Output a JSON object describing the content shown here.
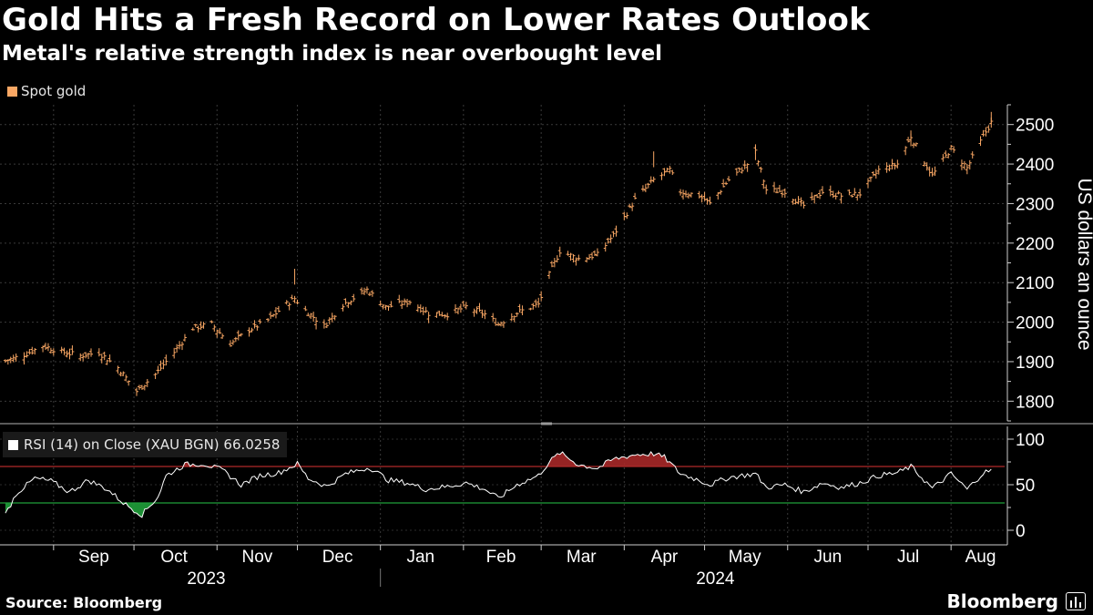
{
  "title": "Gold Hits a Fresh Record on Lower Rates Outlook",
  "subtitle": "Metal's relative strength index is near overbought level",
  "source": "Source: Bloomberg",
  "brand": "Bloomberg",
  "chart_data": [
    {
      "type": "ohlc",
      "legend": [
        "Spot gold"
      ],
      "ylabel": "US dollars an ounce",
      "ylim": [
        1750,
        2550
      ],
      "yticks": [
        1800,
        1900,
        2000,
        2100,
        2200,
        2300,
        2400,
        2500
      ],
      "color": "#f9a764",
      "grid": true,
      "series": [
        {
          "name": "Spot gold",
          "anchors": [
            [
              "2023-08-14",
              1902
            ],
            [
              "2023-08-21",
              1917
            ],
            [
              "2023-08-28",
              1940
            ],
            [
              "2023-09-04",
              1925
            ],
            [
              "2023-09-11",
              1915
            ],
            [
              "2023-09-18",
              1923
            ],
            [
              "2023-09-25",
              1885
            ],
            [
              "2023-10-02",
              1825
            ],
            [
              "2023-10-09",
              1868
            ],
            [
              "2023-10-16",
              1924
            ],
            [
              "2023-10-23",
              1985
            ],
            [
              "2023-10-30",
              1995
            ],
            [
              "2023-11-06",
              1945
            ],
            [
              "2023-11-13",
              1980
            ],
            [
              "2023-11-20",
              2005
            ],
            [
              "2023-11-27",
              2046
            ],
            [
              "2023-11-30",
              2060
            ],
            [
              "2023-12-04",
              2030
            ],
            [
              "2023-12-11",
              1990
            ],
            [
              "2023-12-18",
              2045
            ],
            [
              "2023-12-27",
              2082
            ],
            [
              "2024-01-03",
              2038
            ],
            [
              "2024-01-12",
              2052
            ],
            [
              "2024-01-19",
              2022
            ],
            [
              "2024-01-26",
              2020
            ],
            [
              "2024-02-02",
              2039
            ],
            [
              "2024-02-09",
              2020
            ],
            [
              "2024-02-14",
              1995
            ],
            [
              "2024-02-21",
              2024
            ],
            [
              "2024-02-29",
              2045
            ],
            [
              "2024-03-04",
              2120
            ],
            [
              "2024-03-08",
              2180
            ],
            [
              "2024-03-15",
              2160
            ],
            [
              "2024-03-22",
              2170
            ],
            [
              "2024-03-28",
              2220
            ],
            [
              "2024-04-05",
              2310
            ],
            [
              "2024-04-12",
              2360
            ],
            [
              "2024-04-18",
              2385
            ],
            [
              "2024-04-22",
              2330
            ],
            [
              "2024-04-29",
              2320
            ],
            [
              "2024-05-03",
              2300
            ],
            [
              "2024-05-10",
              2360
            ],
            [
              "2024-05-17",
              2400
            ],
            [
              "2024-05-20",
              2430
            ],
            [
              "2024-05-24",
              2335
            ],
            [
              "2024-05-31",
              2330
            ],
            [
              "2024-06-07",
              2295
            ],
            [
              "2024-06-14",
              2330
            ],
            [
              "2024-06-21",
              2320
            ],
            [
              "2024-06-28",
              2325
            ],
            [
              "2024-07-05",
              2385
            ],
            [
              "2024-07-12",
              2400
            ],
            [
              "2024-07-17",
              2470
            ],
            [
              "2024-07-25",
              2370
            ],
            [
              "2024-08-01",
              2440
            ],
            [
              "2024-08-07",
              2390
            ],
            [
              "2024-08-13",
              2470
            ],
            [
              "2024-08-16",
              2505
            ]
          ]
        }
      ]
    },
    {
      "type": "line",
      "legend": [
        "RSI (14)  on Close (XAU BGN) 66.0258"
      ],
      "ylim": [
        0,
        100
      ],
      "yticks": [
        0,
        50,
        100
      ],
      "thresholds": {
        "overbought": 70,
        "oversold": 30
      },
      "line_color": "#ffffff",
      "overbought_color": "#b02a2a",
      "oversold_color": "#1f9e3a",
      "series": [
        {
          "name": "RSI (14)",
          "anchors": [
            [
              "2023-08-14",
              17
            ],
            [
              "2023-08-18",
              40
            ],
            [
              "2023-08-25",
              57
            ],
            [
              "2023-08-31",
              54
            ],
            [
              "2023-09-07",
              42
            ],
            [
              "2023-09-14",
              55
            ],
            [
              "2023-09-21",
              45
            ],
            [
              "2023-09-28",
              28
            ],
            [
              "2023-10-04",
              17
            ],
            [
              "2023-10-10",
              37
            ],
            [
              "2023-10-13",
              60
            ],
            [
              "2023-10-20",
              72
            ],
            [
              "2023-10-27",
              73
            ],
            [
              "2023-11-03",
              66
            ],
            [
              "2023-11-10",
              50
            ],
            [
              "2023-11-17",
              60
            ],
            [
              "2023-11-24",
              63
            ],
            [
              "2023-12-01",
              73
            ],
            [
              "2023-12-05",
              57
            ],
            [
              "2023-12-12",
              48
            ],
            [
              "2023-12-19",
              62
            ],
            [
              "2023-12-28",
              69
            ],
            [
              "2024-01-04",
              55
            ],
            [
              "2024-01-11",
              52
            ],
            [
              "2024-01-18",
              45
            ],
            [
              "2024-01-26",
              48
            ],
            [
              "2024-02-02",
              52
            ],
            [
              "2024-02-09",
              45
            ],
            [
              "2024-02-14",
              35
            ],
            [
              "2024-02-21",
              50
            ],
            [
              "2024-02-29",
              60
            ],
            [
              "2024-03-04",
              75
            ],
            [
              "2024-03-08",
              85
            ],
            [
              "2024-03-15",
              72
            ],
            [
              "2024-03-22",
              68
            ],
            [
              "2024-03-28",
              78
            ],
            [
              "2024-04-05",
              83
            ],
            [
              "2024-04-12",
              84
            ],
            [
              "2024-04-16",
              80
            ],
            [
              "2024-04-22",
              62
            ],
            [
              "2024-04-29",
              55
            ],
            [
              "2024-05-03",
              50
            ],
            [
              "2024-05-10",
              58
            ],
            [
              "2024-05-20",
              62
            ],
            [
              "2024-05-24",
              47
            ],
            [
              "2024-05-31",
              50
            ],
            [
              "2024-06-07",
              42
            ],
            [
              "2024-06-14",
              52
            ],
            [
              "2024-06-21",
              47
            ],
            [
              "2024-06-28",
              52
            ],
            [
              "2024-07-05",
              60
            ],
            [
              "2024-07-12",
              63
            ],
            [
              "2024-07-17",
              70
            ],
            [
              "2024-07-25",
              46
            ],
            [
              "2024-08-01",
              62
            ],
            [
              "2024-08-07",
              45
            ],
            [
              "2024-08-13",
              63
            ],
            [
              "2024-08-16",
              66
            ]
          ]
        }
      ]
    }
  ],
  "x_axis": {
    "range": [
      "2023-08-12",
      "2024-08-21"
    ],
    "months": [
      {
        "label": "Sep",
        "date": "2023-09-16"
      },
      {
        "label": "Oct",
        "date": "2023-10-16"
      },
      {
        "label": "Nov",
        "date": "2023-11-16"
      },
      {
        "label": "Dec",
        "date": "2023-12-16"
      },
      {
        "label": "Jan",
        "date": "2024-01-16"
      },
      {
        "label": "Feb",
        "date": "2024-02-15"
      },
      {
        "label": "Mar",
        "date": "2024-03-16"
      },
      {
        "label": "Apr",
        "date": "2024-04-16"
      },
      {
        "label": "May",
        "date": "2024-05-16"
      },
      {
        "label": "Jun",
        "date": "2024-06-16"
      },
      {
        "label": "Jul",
        "date": "2024-07-16"
      },
      {
        "label": "Aug",
        "date": "2024-08-12"
      }
    ],
    "years": [
      {
        "label": "2023",
        "date": "2023-10-28"
      },
      {
        "label": "2024",
        "date": "2024-05-05"
      }
    ],
    "year_divider": "2024-01-01"
  }
}
